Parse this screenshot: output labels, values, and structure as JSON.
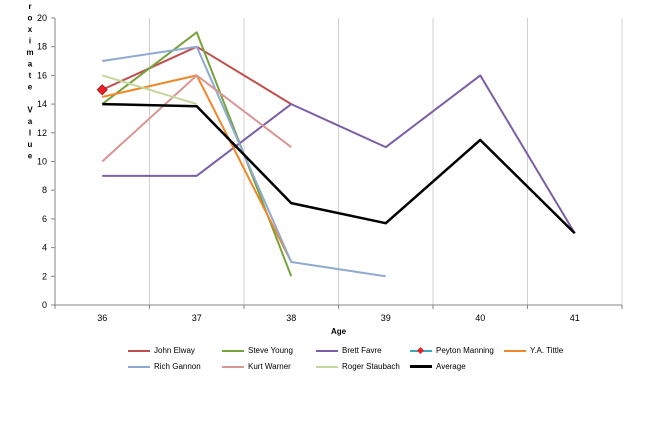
{
  "chart_data": {
    "type": "line",
    "title": "",
    "xlabel": "Age",
    "ylabel": "Approximate Value",
    "x": [
      36,
      37,
      38,
      39,
      40,
      41
    ],
    "xlim": [
      35.5,
      41.5
    ],
    "ylim": [
      0,
      20
    ],
    "yticks": [
      0,
      2,
      4,
      6,
      8,
      10,
      12,
      14,
      16,
      18,
      20
    ],
    "grid": "vertical",
    "legend_position": "bottom",
    "series": [
      {
        "name": "John Elway",
        "color": "#c0504d",
        "values": [
          15,
          18,
          14,
          null,
          null,
          null
        ]
      },
      {
        "name": "Steve Young",
        "color": "#77a33c",
        "values": [
          14,
          19,
          2,
          null,
          null,
          null
        ]
      },
      {
        "name": "Brett Favre",
        "color": "#7b5ea7",
        "values": [
          9,
          9,
          14,
          11,
          16,
          5
        ]
      },
      {
        "name": "Peyton Manning",
        "color": "#35a9c4",
        "marker": "diamond",
        "marker_color": "#e8202a",
        "values": [
          15,
          null,
          null,
          null,
          null,
          null
        ]
      },
      {
        "name": "Y.A. Tittle",
        "color": "#f0862a",
        "values": [
          14.5,
          16,
          3,
          null,
          null,
          null
        ]
      },
      {
        "name": "Rich Gannon",
        "color": "#8eaad3",
        "values": [
          17,
          18,
          3,
          2,
          null,
          null
        ]
      },
      {
        "name": "Kurt Warner",
        "color": "#da9694",
        "values": [
          10,
          16,
          11,
          null,
          null,
          null
        ]
      },
      {
        "name": "Roger Staubach",
        "color": "#c4d79b",
        "values": [
          16,
          14,
          null,
          null,
          null,
          null
        ]
      },
      {
        "name": "Average",
        "color": "#000000",
        "width": 2.5,
        "values": [
          14,
          13.85,
          7.1,
          5.7,
          11.5,
          5
        ]
      }
    ]
  }
}
